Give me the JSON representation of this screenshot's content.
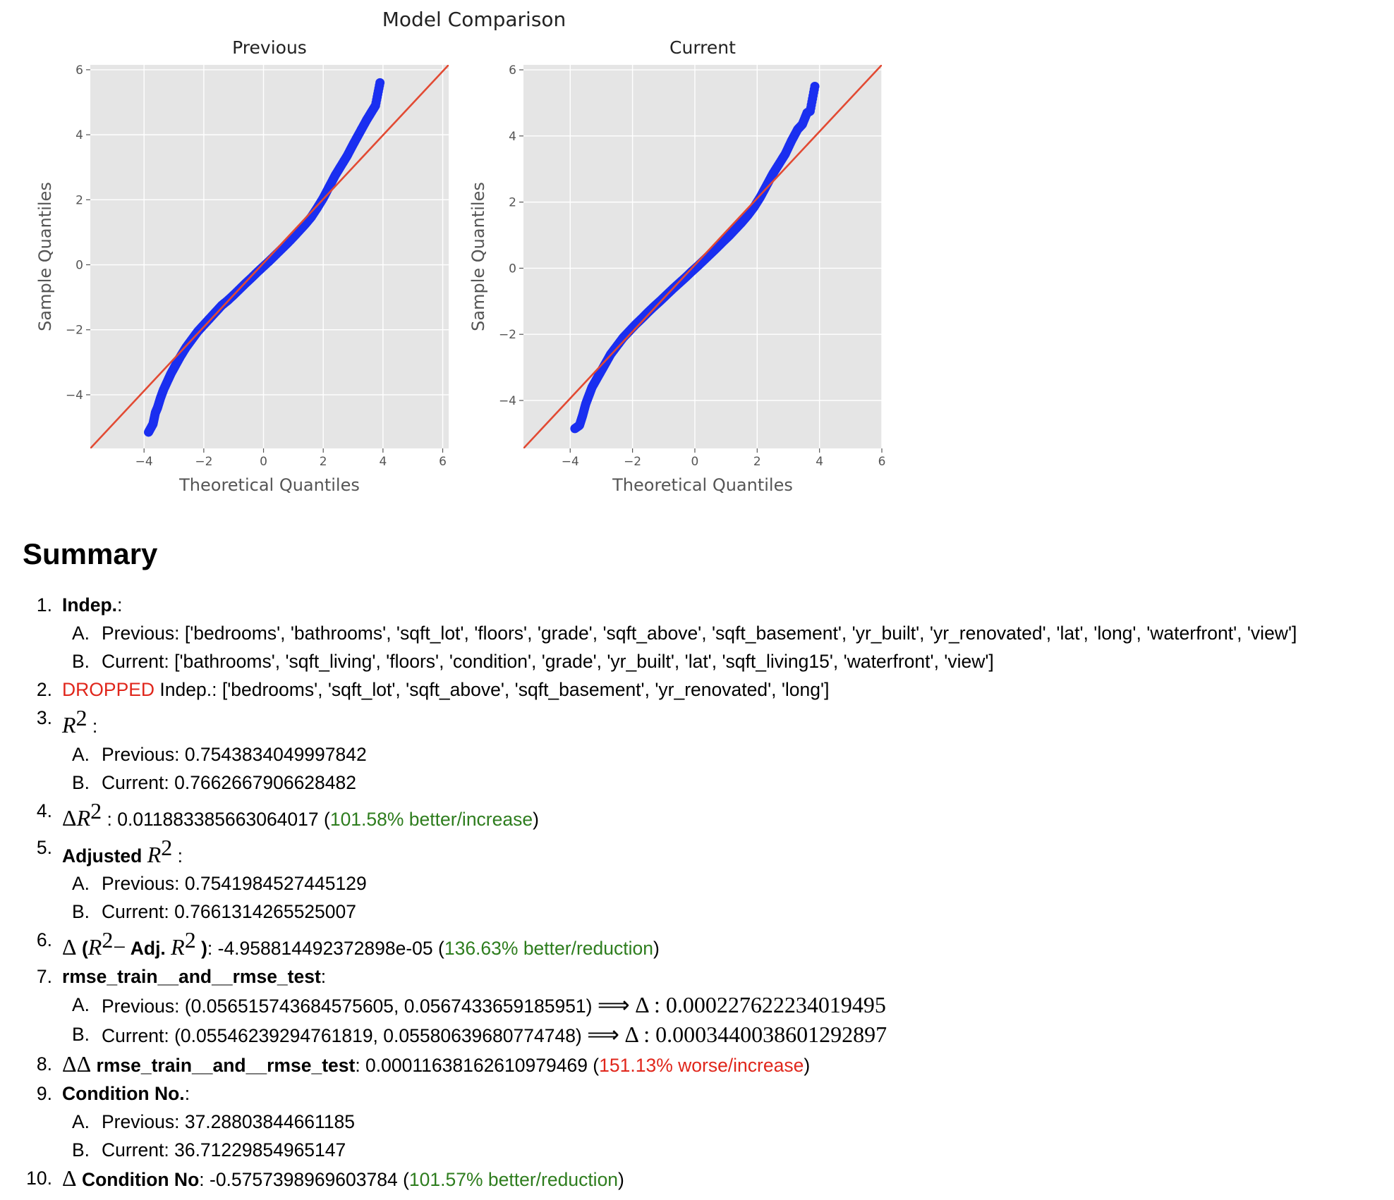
{
  "colors": {
    "panel": "#e5e5e5",
    "grid": "#ffffff",
    "points": "#1a2ff0",
    "line": "#e24a33",
    "good": "#2e7d1e",
    "bad": "#e0261b"
  },
  "chart_data": [
    {
      "type": "scatter",
      "suptitle": "Model Comparison",
      "title": "Previous",
      "xlabel": "Theoretical Quantiles",
      "ylabel": "Sample Quantiles",
      "xlim": [
        -5.8,
        6.2
      ],
      "ylim": [
        -5.65,
        6.15
      ],
      "xticks": [
        -4,
        -2,
        0,
        2,
        4,
        6
      ],
      "yticks": [
        -4,
        -2,
        0,
        2,
        4,
        6
      ],
      "tick_labels_x": [
        "−4",
        "−2",
        "0",
        "2",
        "4",
        "6"
      ],
      "tick_labels_y": [
        "−4",
        "−2",
        "0",
        "2",
        "4",
        "6"
      ],
      "grid": true,
      "reference_line": {
        "x": [
          -5.8,
          6.2
        ],
        "y": [
          -5.65,
          6.15
        ]
      },
      "points": [
        [
          -3.85,
          -5.15
        ],
        [
          -3.7,
          -4.9
        ],
        [
          -3.62,
          -4.55
        ],
        [
          -3.55,
          -4.4
        ],
        [
          -3.45,
          -4.1
        ],
        [
          -3.35,
          -3.85
        ],
        [
          -3.2,
          -3.55
        ],
        [
          -3.1,
          -3.35
        ],
        [
          -2.95,
          -3.1
        ],
        [
          -2.8,
          -2.85
        ],
        [
          -2.6,
          -2.55
        ],
        [
          -2.4,
          -2.3
        ],
        [
          -2.2,
          -2.05
        ],
        [
          -2.0,
          -1.85
        ],
        [
          -1.8,
          -1.65
        ],
        [
          -1.6,
          -1.45
        ],
        [
          -1.4,
          -1.25
        ],
        [
          -1.2,
          -1.1
        ],
        [
          -1.0,
          -0.93
        ],
        [
          -0.8,
          -0.75
        ],
        [
          -0.6,
          -0.57
        ],
        [
          -0.4,
          -0.4
        ],
        [
          -0.2,
          -0.22
        ],
        [
          0.0,
          -0.05
        ],
        [
          0.2,
          0.12
        ],
        [
          0.4,
          0.3
        ],
        [
          0.6,
          0.48
        ],
        [
          0.8,
          0.66
        ],
        [
          1.0,
          0.85
        ],
        [
          1.2,
          1.05
        ],
        [
          1.4,
          1.25
        ],
        [
          1.6,
          1.47
        ],
        [
          1.8,
          1.75
        ],
        [
          2.0,
          2.05
        ],
        [
          2.2,
          2.4
        ],
        [
          2.4,
          2.75
        ],
        [
          2.6,
          3.05
        ],
        [
          2.8,
          3.35
        ],
        [
          3.0,
          3.7
        ],
        [
          3.15,
          3.95
        ],
        [
          3.3,
          4.2
        ],
        [
          3.45,
          4.45
        ],
        [
          3.55,
          4.6
        ],
        [
          3.65,
          4.75
        ],
        [
          3.75,
          4.9
        ],
        [
          3.9,
          5.6
        ]
      ]
    },
    {
      "type": "scatter",
      "title": "Current",
      "xlabel": "Theoretical Quantiles",
      "ylabel": "Sample Quantiles",
      "xlim": [
        -5.5,
        6.0
      ],
      "ylim": [
        -5.45,
        6.15
      ],
      "xticks": [
        -4,
        -2,
        0,
        2,
        4,
        6
      ],
      "yticks": [
        -4,
        -2,
        0,
        2,
        4,
        6
      ],
      "tick_labels_x": [
        "−4",
        "−2",
        "0",
        "2",
        "4",
        "6"
      ],
      "tick_labels_y": [
        "−4",
        "−2",
        "0",
        "2",
        "4",
        "6"
      ],
      "grid": true,
      "reference_line": {
        "x": [
          -5.5,
          6.0
        ],
        "y": [
          -5.45,
          6.15
        ]
      },
      "points": [
        [
          -3.85,
          -4.85
        ],
        [
          -3.7,
          -4.75
        ],
        [
          -3.6,
          -4.45
        ],
        [
          -3.5,
          -4.1
        ],
        [
          -3.4,
          -3.85
        ],
        [
          -3.3,
          -3.6
        ],
        [
          -3.15,
          -3.35
        ],
        [
          -3.0,
          -3.1
        ],
        [
          -2.85,
          -2.85
        ],
        [
          -2.7,
          -2.6
        ],
        [
          -2.5,
          -2.35
        ],
        [
          -2.3,
          -2.1
        ],
        [
          -2.1,
          -1.9
        ],
        [
          -1.9,
          -1.7
        ],
        [
          -1.7,
          -1.52
        ],
        [
          -1.5,
          -1.33
        ],
        [
          -1.3,
          -1.15
        ],
        [
          -1.1,
          -0.98
        ],
        [
          -0.9,
          -0.8
        ],
        [
          -0.7,
          -0.62
        ],
        [
          -0.5,
          -0.45
        ],
        [
          -0.3,
          -0.28
        ],
        [
          -0.1,
          -0.1
        ],
        [
          0.1,
          0.07
        ],
        [
          0.3,
          0.25
        ],
        [
          0.5,
          0.43
        ],
        [
          0.7,
          0.61
        ],
        [
          0.9,
          0.8
        ],
        [
          1.1,
          0.98
        ],
        [
          1.3,
          1.18
        ],
        [
          1.5,
          1.38
        ],
        [
          1.7,
          1.6
        ],
        [
          1.9,
          1.85
        ],
        [
          2.1,
          2.15
        ],
        [
          2.3,
          2.5
        ],
        [
          2.5,
          2.85
        ],
        [
          2.7,
          3.15
        ],
        [
          2.9,
          3.45
        ],
        [
          3.1,
          3.85
        ],
        [
          3.3,
          4.2
        ],
        [
          3.45,
          4.35
        ],
        [
          3.6,
          4.7
        ],
        [
          3.7,
          4.75
        ],
        [
          3.85,
          5.5
        ]
      ]
    }
  ],
  "summary": {
    "heading": "Summary",
    "items": [
      {
        "num": "1.",
        "label": "Indep.",
        "colon": ":",
        "sub": [
          {
            "letter": "A.",
            "text": "Previous: ['bedrooms', 'bathrooms', 'sqft_lot', 'floors', 'grade', 'sqft_above', 'sqft_basement', 'yr_built', 'yr_renovated', 'lat', 'long', 'waterfront', 'view']"
          },
          {
            "letter": "B.",
            "text": "Current: ['bathrooms', 'sqft_living', 'floors', 'condition', 'grade', 'yr_built', 'lat', 'sqft_living15', 'waterfront', 'view']"
          }
        ]
      },
      {
        "num": "2.",
        "dropped": "DROPPED",
        "text": " Indep.: ['bedrooms', 'sqft_lot', 'sqft_above', 'sqft_basement', 'yr_renovated', 'long']"
      },
      {
        "num": "3.",
        "r": "R",
        "two": "2",
        "colon": " :",
        "sub": [
          {
            "letter": "A.",
            "text": "Previous: 0.7543834049997842"
          },
          {
            "letter": "B.",
            "text": "Current: 0.7662667906628482"
          }
        ]
      },
      {
        "num": "4.",
        "delta": "Δ",
        "r": "R",
        "two": "2",
        "value": " : 0.011883385663064017 (",
        "note": "101.58% better/increase",
        "close": ")"
      },
      {
        "num": "5.",
        "label": "Adjusted ",
        "r": "R",
        "two": "2",
        "colon": " :",
        "sub": [
          {
            "letter": "A.",
            "text": "Previous: 0.7541984527445129"
          },
          {
            "letter": "B.",
            "text": "Current: 0.7661314265525007"
          }
        ]
      },
      {
        "num": "6.",
        "delta": "Δ",
        "open": " (",
        "r": "R",
        "two": "2",
        "minus": "−",
        "adj": " Adj. ",
        "r2": "R",
        "two2": "2",
        "close_paren": " )",
        "value": ": -4.958814492372898e-05 (",
        "note": "136.63% better/reduction",
        "close": ")"
      },
      {
        "num": "7.",
        "label": "rmse_train__and__rmse_test",
        "colon": ":",
        "sub": [
          {
            "letter": "A.",
            "text": "Previous: (0.05651574368457560​5, 0.0567433659185951)",
            "arrow": "⟹",
            "delta": "Δ : 0.000227622234019495"
          },
          {
            "letter": "B.",
            "text": "Current: (0.05546239294761819, 0.05580639680774748)",
            "arrow": "⟹",
            "delta": "Δ : 0.0003440038601292897"
          }
        ]
      },
      {
        "num": "8.",
        "delta": "ΔΔ",
        "label": " rmse_train__and__rmse_test",
        "value": ": 0.00011638162610979469 (",
        "note": "151.13% worse/increase",
        "close": ")"
      },
      {
        "num": "9.",
        "label": "Condition No.",
        "colon": ":",
        "sub": [
          {
            "letter": "A.",
            "text": "Previous: 37.28803844661185"
          },
          {
            "letter": "B.",
            "text": "Current: 36.71229854965147"
          }
        ]
      },
      {
        "num": "10.",
        "delta": "Δ",
        "label": " Condition No",
        "value": ": -0.5757398969603784 (",
        "note": "101.57% better/reduction",
        "close": ")"
      }
    ]
  }
}
